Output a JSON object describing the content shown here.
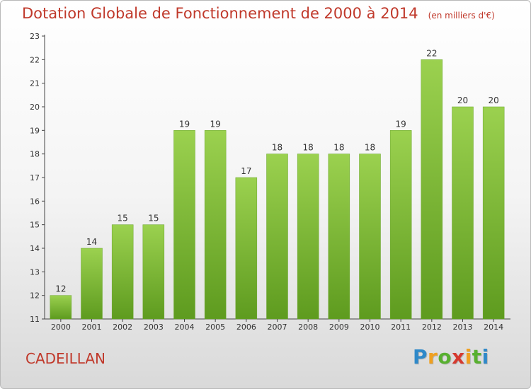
{
  "chart_data": {
    "type": "bar",
    "title": "Dotation Globale de Fonctionnement de 2000 à 2014",
    "unit": "(en milliers d'€)",
    "categories": [
      "2000",
      "2001",
      "2002",
      "2003",
      "2004",
      "2005",
      "2006",
      "2007",
      "2008",
      "2009",
      "2010",
      "2011",
      "2012",
      "2013",
      "2014"
    ],
    "values": [
      12,
      14,
      15,
      15,
      19,
      19,
      17,
      18,
      18,
      18,
      18,
      19,
      22,
      20,
      20
    ],
    "ylim": [
      11,
      23
    ],
    "yticks": [
      11,
      12,
      13,
      14,
      15,
      16,
      17,
      18,
      19,
      20,
      21,
      22,
      23
    ],
    "grid": false,
    "bar_color": "#7cba3a",
    "bar_color_light": "#9bd14f",
    "bar_color_dark": "#5e9b1f"
  },
  "footer": {
    "commune": "CADEILLAN",
    "brand_letters": [
      {
        "ch": "P",
        "color": "#2f89c9"
      },
      {
        "ch": "r",
        "color": "#f0a020"
      },
      {
        "ch": "o",
        "color": "#58b030"
      },
      {
        "ch": "x",
        "color": "#d63a2f"
      },
      {
        "ch": "i",
        "color": "#f0a020"
      },
      {
        "ch": "t",
        "color": "#58b030"
      },
      {
        "ch": "i",
        "color": "#2f89c9"
      }
    ]
  }
}
